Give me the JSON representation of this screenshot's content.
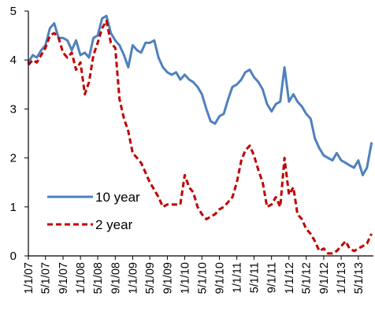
{
  "chart_data": {
    "type": "line",
    "title": "",
    "xlabel": "",
    "ylabel": "",
    "ylim": [
      0,
      5
    ],
    "yticks": [
      "0",
      "1",
      "2",
      "3",
      "4",
      "5"
    ],
    "grid": false,
    "legend_position": "lower-left",
    "x_tick_labels": [
      "1/1/07",
      "5/1/07",
      "9/1/07",
      "1/1/08",
      "5/1/08",
      "9/1/08",
      "1/1/09",
      "5/1/09",
      "9/1/09",
      "1/1/10",
      "5/1/10",
      "9/1/10",
      "1/1/11",
      "5/1/11",
      "9/1/11",
      "1/1/12",
      "5/1/12",
      "9/1/12",
      "1/1/13",
      "5/1/13"
    ],
    "series": [
      {
        "name": "10 year",
        "color": "#4F81BD",
        "style": "solid",
        "points": [
          [
            "2007-01-01",
            3.95
          ],
          [
            "2007-02-01",
            4.1
          ],
          [
            "2007-03-01",
            4.05
          ],
          [
            "2007-04-01",
            4.2
          ],
          [
            "2007-05-01",
            4.3
          ],
          [
            "2007-06-01",
            4.65
          ],
          [
            "2007-07-01",
            4.75
          ],
          [
            "2007-08-01",
            4.45
          ],
          [
            "2007-09-01",
            4.45
          ],
          [
            "2007-10-01",
            4.4
          ],
          [
            "2007-11-01",
            4.2
          ],
          [
            "2007-12-01",
            4.4
          ],
          [
            "2008-01-01",
            4.1
          ],
          [
            "2008-02-01",
            4.15
          ],
          [
            "2008-03-01",
            4.05
          ],
          [
            "2008-04-01",
            4.45
          ],
          [
            "2008-05-01",
            4.5
          ],
          [
            "2008-06-01",
            4.85
          ],
          [
            "2008-07-01",
            4.9
          ],
          [
            "2008-08-01",
            4.55
          ],
          [
            "2008-09-01",
            4.4
          ],
          [
            "2008-10-01",
            4.3
          ],
          [
            "2008-11-01",
            4.1
          ],
          [
            "2008-12-01",
            3.85
          ],
          [
            "2009-01-01",
            4.3
          ],
          [
            "2009-02-01",
            4.2
          ],
          [
            "2009-03-01",
            4.15
          ],
          [
            "2009-04-01",
            4.35
          ],
          [
            "2009-05-01",
            4.35
          ],
          [
            "2009-06-01",
            4.4
          ],
          [
            "2009-07-01",
            4.05
          ],
          [
            "2009-08-01",
            3.85
          ],
          [
            "2009-09-01",
            3.75
          ],
          [
            "2009-10-01",
            3.7
          ],
          [
            "2009-11-01",
            3.75
          ],
          [
            "2009-12-01",
            3.6
          ],
          [
            "2010-01-01",
            3.7
          ],
          [
            "2010-02-01",
            3.6
          ],
          [
            "2010-03-01",
            3.55
          ],
          [
            "2010-04-01",
            3.45
          ],
          [
            "2010-05-01",
            3.3
          ],
          [
            "2010-06-01",
            3.0
          ],
          [
            "2010-07-01",
            2.75
          ],
          [
            "2010-08-01",
            2.7
          ],
          [
            "2010-09-01",
            2.85
          ],
          [
            "2010-10-01",
            2.9
          ],
          [
            "2010-11-01",
            3.2
          ],
          [
            "2010-12-01",
            3.45
          ],
          [
            "2011-01-01",
            3.5
          ],
          [
            "2011-02-01",
            3.6
          ],
          [
            "2011-03-01",
            3.75
          ],
          [
            "2011-04-01",
            3.8
          ],
          [
            "2011-05-01",
            3.65
          ],
          [
            "2011-06-01",
            3.55
          ],
          [
            "2011-07-01",
            3.4
          ],
          [
            "2011-08-01",
            3.1
          ],
          [
            "2011-09-01",
            2.95
          ],
          [
            "2011-10-01",
            3.1
          ],
          [
            "2011-11-01",
            3.15
          ],
          [
            "2011-12-01",
            3.85
          ],
          [
            "2012-01-01",
            3.15
          ],
          [
            "2012-02-01",
            3.3
          ],
          [
            "2012-03-01",
            3.15
          ],
          [
            "2012-04-01",
            3.05
          ],
          [
            "2012-05-01",
            2.9
          ],
          [
            "2012-06-01",
            2.8
          ],
          [
            "2012-07-01",
            2.4
          ],
          [
            "2012-08-01",
            2.2
          ],
          [
            "2012-09-01",
            2.05
          ],
          [
            "2012-10-01",
            2.0
          ],
          [
            "2012-11-01",
            1.95
          ],
          [
            "2012-12-01",
            2.1
          ],
          [
            "2013-01-01",
            1.95
          ],
          [
            "2013-02-01",
            1.9
          ],
          [
            "2013-03-01",
            1.85
          ],
          [
            "2013-04-01",
            1.8
          ],
          [
            "2013-05-01",
            1.95
          ],
          [
            "2013-06-01",
            1.65
          ],
          [
            "2013-07-01",
            1.8
          ],
          [
            "2013-08-01",
            2.3
          ]
        ]
      },
      {
        "name": "2 year",
        "color": "#C00000",
        "style": "dashed",
        "points": [
          [
            "2007-01-01",
            3.9
          ],
          [
            "2007-02-01",
            4.0
          ],
          [
            "2007-03-01",
            3.95
          ],
          [
            "2007-04-01",
            4.1
          ],
          [
            "2007-05-01",
            4.25
          ],
          [
            "2007-06-01",
            4.5
          ],
          [
            "2007-07-01",
            4.55
          ],
          [
            "2007-08-01",
            4.45
          ],
          [
            "2007-09-01",
            4.15
          ],
          [
            "2007-10-01",
            4.05
          ],
          [
            "2007-11-01",
            4.15
          ],
          [
            "2007-12-01",
            3.8
          ],
          [
            "2008-01-01",
            3.95
          ],
          [
            "2008-02-01",
            3.3
          ],
          [
            "2008-03-01",
            3.55
          ],
          [
            "2008-04-01",
            4.1
          ],
          [
            "2008-05-01",
            4.35
          ],
          [
            "2008-06-01",
            4.65
          ],
          [
            "2008-07-01",
            4.8
          ],
          [
            "2008-08-01",
            4.35
          ],
          [
            "2008-09-01",
            4.25
          ],
          [
            "2008-10-01",
            3.2
          ],
          [
            "2008-11-01",
            2.8
          ],
          [
            "2008-12-01",
            2.55
          ],
          [
            "2009-01-01",
            2.1
          ],
          [
            "2009-02-01",
            2.0
          ],
          [
            "2009-03-01",
            1.9
          ],
          [
            "2009-04-01",
            1.7
          ],
          [
            "2009-05-01",
            1.5
          ],
          [
            "2009-06-01",
            1.35
          ],
          [
            "2009-07-01",
            1.2
          ],
          [
            "2009-08-01",
            1.0
          ],
          [
            "2009-09-01",
            1.05
          ],
          [
            "2009-10-01",
            1.05
          ],
          [
            "2009-11-01",
            1.05
          ],
          [
            "2009-12-01",
            1.05
          ],
          [
            "2010-01-01",
            1.65
          ],
          [
            "2010-02-01",
            1.4
          ],
          [
            "2010-03-01",
            1.3
          ],
          [
            "2010-04-01",
            1.0
          ],
          [
            "2010-05-01",
            0.85
          ],
          [
            "2010-06-01",
            0.75
          ],
          [
            "2010-07-01",
            0.8
          ],
          [
            "2010-08-01",
            0.85
          ],
          [
            "2010-09-01",
            0.95
          ],
          [
            "2010-10-01",
            1.0
          ],
          [
            "2010-11-01",
            1.1
          ],
          [
            "2010-12-01",
            1.2
          ],
          [
            "2011-01-01",
            1.5
          ],
          [
            "2011-02-01",
            1.95
          ],
          [
            "2011-03-01",
            2.15
          ],
          [
            "2011-04-01",
            2.25
          ],
          [
            "2011-05-01",
            2.05
          ],
          [
            "2011-06-01",
            1.75
          ],
          [
            "2011-07-01",
            1.5
          ],
          [
            "2011-08-01",
            1.0
          ],
          [
            "2011-09-01",
            1.05
          ],
          [
            "2011-10-01",
            1.2
          ],
          [
            "2011-11-01",
            1.0
          ],
          [
            "2011-12-01",
            2.0
          ],
          [
            "2012-01-01",
            1.25
          ],
          [
            "2012-02-01",
            1.4
          ],
          [
            "2012-03-01",
            0.85
          ],
          [
            "2012-04-01",
            0.75
          ],
          [
            "2012-05-01",
            0.55
          ],
          [
            "2012-06-01",
            0.45
          ],
          [
            "2012-07-01",
            0.3
          ],
          [
            "2012-08-01",
            0.1
          ],
          [
            "2012-09-01",
            0.15
          ],
          [
            "2012-10-01",
            0.05
          ],
          [
            "2012-11-01",
            0.05
          ],
          [
            "2012-12-01",
            0.1
          ],
          [
            "2013-01-01",
            0.2
          ],
          [
            "2013-02-01",
            0.3
          ],
          [
            "2013-03-01",
            0.15
          ],
          [
            "2013-04-01",
            0.1
          ],
          [
            "2013-05-01",
            0.15
          ],
          [
            "2013-06-01",
            0.2
          ],
          [
            "2013-07-01",
            0.25
          ],
          [
            "2013-08-01",
            0.45
          ]
        ]
      }
    ]
  }
}
